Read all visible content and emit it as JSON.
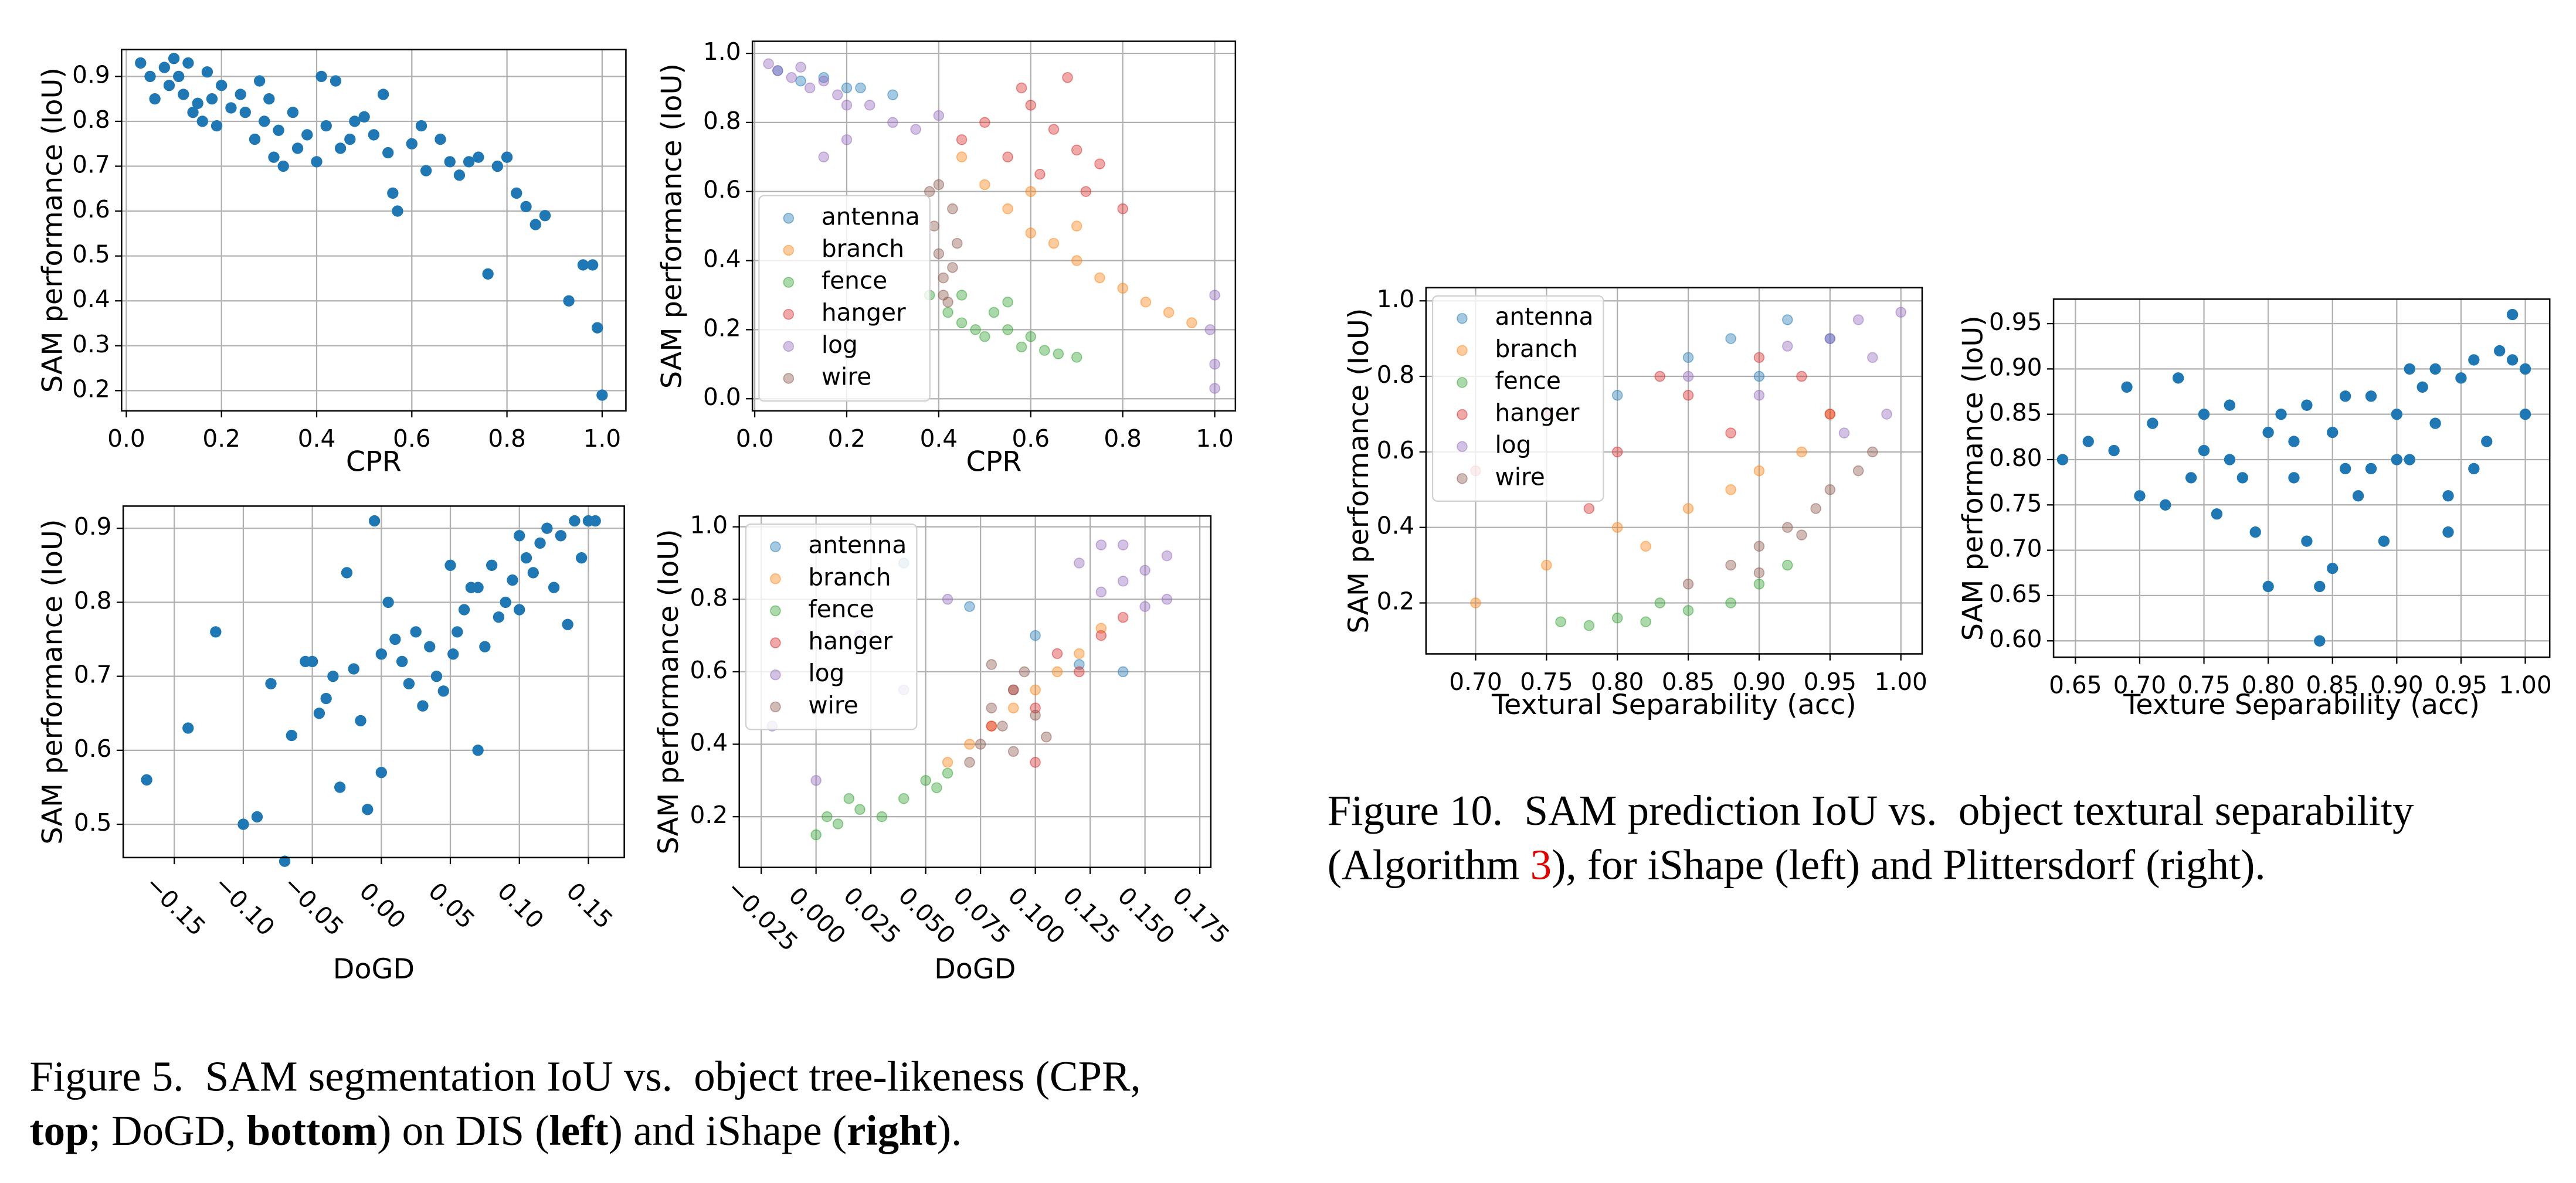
{
  "chart_data": [
    {
      "type": "scatter",
      "x_label": "CPR",
      "y_label": "SAM performance (IoU)",
      "color": "#1f77b4",
      "grid": true,
      "xlim": [
        -0.01,
        1.05
      ],
      "ylim": [
        0.155,
        0.96
      ],
      "xticks": [
        {
          "value": 0,
          "label": "0.0"
        },
        0.2,
        0.4,
        0.6,
        0.8,
        {
          "value": 1,
          "label": "1.0"
        }
      ],
      "yticks": [
        0.2,
        0.3,
        0.4,
        0.5,
        0.6,
        0.7,
        0.8,
        0.9
      ],
      "x": [
        0.03,
        0.05,
        0.06,
        0.08,
        0.09,
        0.1,
        0.11,
        0.12,
        0.13,
        0.14,
        0.15,
        0.16,
        0.17,
        0.18,
        0.19,
        0.2,
        0.22,
        0.24,
        0.25,
        0.27,
        0.28,
        0.29,
        0.3,
        0.31,
        0.32,
        0.33,
        0.35,
        0.36,
        0.38,
        0.4,
        0.41,
        0.42,
        0.44,
        0.45,
        0.47,
        0.48,
        0.5,
        0.52,
        0.54,
        0.55,
        0.56,
        0.57,
        0.6,
        0.62,
        0.63,
        0.66,
        0.68,
        0.7,
        0.72,
        0.74,
        0.76,
        0.78,
        0.8,
        0.82,
        0.84,
        0.86,
        0.88,
        0.93,
        0.96,
        0.98,
        0.99,
        1.0
      ],
      "values": [
        0.93,
        0.9,
        0.85,
        0.92,
        0.88,
        0.94,
        0.9,
        0.86,
        0.93,
        0.82,
        0.84,
        0.8,
        0.91,
        0.85,
        0.79,
        0.88,
        0.83,
        0.86,
        0.82,
        0.76,
        0.89,
        0.8,
        0.85,
        0.72,
        0.78,
        0.7,
        0.82,
        0.74,
        0.77,
        0.71,
        0.9,
        0.79,
        0.89,
        0.74,
        0.76,
        0.8,
        0.81,
        0.77,
        0.86,
        0.73,
        0.64,
        0.6,
        0.75,
        0.79,
        0.69,
        0.76,
        0.71,
        0.68,
        0.71,
        0.72,
        0.46,
        0.7,
        0.72,
        0.64,
        0.61,
        0.57,
        0.59,
        0.4,
        0.48,
        0.48,
        0.34,
        0.19
      ]
    },
    {
      "type": "scatter",
      "x_label": "CPR",
      "y_label": "SAM performance (IoU)",
      "grid": true,
      "legend": "lower left",
      "xlim": [
        -0.005,
        1.045
      ],
      "ylim": [
        -0.035,
        1.035
      ],
      "xticks": [
        {
          "value": 0,
          "label": "0.0"
        },
        0.2,
        0.4,
        0.6,
        0.8,
        {
          "value": 1,
          "label": "1.0"
        }
      ],
      "yticks": [
        {
          "value": 0,
          "label": "0.0"
        },
        0.2,
        0.4,
        0.6,
        0.8,
        {
          "value": 1,
          "label": "1.0"
        }
      ],
      "series": [
        {
          "name": "antenna",
          "color": "#1f77b4",
          "x": [
            0.05,
            0.1,
            0.15,
            0.2,
            0.23,
            0.3
          ],
          "values": [
            0.95,
            0.92,
            0.93,
            0.9,
            0.9,
            0.88
          ]
        },
        {
          "name": "branch",
          "color": "#ff7f0e",
          "x": [
            0.45,
            0.5,
            0.55,
            0.6,
            0.65,
            0.7,
            0.75,
            0.8,
            0.85,
            0.9,
            0.95,
            0.6,
            0.7
          ],
          "values": [
            0.7,
            0.62,
            0.55,
            0.48,
            0.45,
            0.4,
            0.35,
            0.32,
            0.28,
            0.25,
            0.22,
            0.6,
            0.5
          ]
        },
        {
          "name": "fence",
          "color": "#2ca02c",
          "x": [
            0.38,
            0.42,
            0.45,
            0.48,
            0.5,
            0.52,
            0.55,
            0.58,
            0.6,
            0.63,
            0.66,
            0.7,
            0.45,
            0.55
          ],
          "values": [
            0.3,
            0.25,
            0.22,
            0.2,
            0.18,
            0.25,
            0.2,
            0.15,
            0.18,
            0.14,
            0.13,
            0.12,
            0.3,
            0.28
          ]
        },
        {
          "name": "hanger",
          "color": "#d62728",
          "x": [
            0.45,
            0.5,
            0.55,
            0.6,
            0.62,
            0.65,
            0.7,
            0.72,
            0.75,
            0.8,
            0.58,
            0.68
          ],
          "values": [
            0.75,
            0.8,
            0.7,
            0.85,
            0.65,
            0.78,
            0.72,
            0.6,
            0.68,
            0.55,
            0.9,
            0.93
          ]
        },
        {
          "name": "log",
          "color": "#9467bd",
          "x": [
            0.03,
            0.05,
            0.08,
            0.1,
            0.12,
            0.15,
            0.18,
            0.2,
            0.25,
            0.3,
            0.35,
            0.4,
            0.15,
            0.2,
            1.0,
            1.0,
            1.0,
            0.99
          ],
          "values": [
            0.97,
            0.95,
            0.93,
            0.96,
            0.9,
            0.92,
            0.88,
            0.85,
            0.85,
            0.8,
            0.78,
            0.82,
            0.7,
            0.75,
            0.3,
            0.1,
            0.03,
            0.2
          ]
        },
        {
          "name": "wire",
          "color": "#8c564b",
          "x": [
            0.38,
            0.39,
            0.4,
            0.41,
            0.42,
            0.43,
            0.44,
            0.4,
            0.41,
            0.43
          ],
          "values": [
            0.6,
            0.5,
            0.42,
            0.35,
            0.28,
            0.55,
            0.45,
            0.62,
            0.3,
            0.38
          ]
        }
      ]
    },
    {
      "type": "scatter",
      "x_label": "DoGD",
      "y_label": "SAM performance (IoU)",
      "color": "#1f77b4",
      "grid": true,
      "xlim": [
        -0.187,
        0.176
      ],
      "ylim": [
        0.455,
        0.93
      ],
      "xticks": [
        {
          "value": -0.15,
          "label": "−0.15"
        },
        {
          "value": -0.1,
          "label": "−0.10"
        },
        {
          "value": -0.05,
          "label": "−0.05"
        },
        {
          "value": 0,
          "label": "0.00"
        },
        0.05,
        {
          "value": 0.1,
          "label": "0.10"
        },
        0.15
      ],
      "yticks": [
        0.5,
        0.6,
        0.7,
        0.8,
        0.9
      ],
      "x": [
        -0.17,
        -0.14,
        -0.12,
        -0.1,
        -0.09,
        -0.08,
        -0.07,
        -0.065,
        -0.055,
        -0.05,
        -0.045,
        -0.04,
        -0.035,
        -0.03,
        -0.025,
        -0.02,
        -0.015,
        -0.01,
        -0.005,
        0.0,
        0.0,
        0.005,
        0.01,
        0.015,
        0.02,
        0.025,
        0.03,
        0.035,
        0.04,
        0.045,
        0.05,
        0.052,
        0.055,
        0.06,
        0.065,
        0.07,
        0.07,
        0.075,
        0.08,
        0.085,
        0.09,
        0.095,
        0.1,
        0.1,
        0.105,
        0.11,
        0.115,
        0.12,
        0.125,
        0.13,
        0.135,
        0.14,
        0.145,
        0.15,
        0.155
      ],
      "values": [
        0.56,
        0.63,
        0.76,
        0.5,
        0.51,
        0.69,
        0.45,
        0.62,
        0.72,
        0.72,
        0.65,
        0.67,
        0.7,
        0.55,
        0.84,
        0.71,
        0.64,
        0.52,
        0.91,
        0.57,
        0.73,
        0.8,
        0.75,
        0.72,
        0.69,
        0.76,
        0.66,
        0.74,
        0.7,
        0.68,
        0.85,
        0.73,
        0.76,
        0.79,
        0.82,
        0.6,
        0.82,
        0.74,
        0.85,
        0.78,
        0.8,
        0.83,
        0.89,
        0.79,
        0.86,
        0.84,
        0.88,
        0.9,
        0.82,
        0.89,
        0.77,
        0.91,
        0.86,
        0.91,
        0.91
      ]
    },
    {
      "type": "scatter",
      "x_label": "DoGD",
      "y_label": "SAM performance (IoU)",
      "grid": true,
      "legend": "upper left",
      "xlim": [
        -0.035,
        0.18
      ],
      "ylim": [
        0.06,
        1.03
      ],
      "xticks": [
        {
          "value": -0.025,
          "label": "−0.025"
        },
        {
          "value": 0,
          "label": "0.000"
        },
        0.025,
        {
          "value": 0.05,
          "label": "0.050"
        },
        0.075,
        {
          "value": 0.1,
          "label": "0.100"
        },
        0.125,
        {
          "value": 0.15,
          "label": "0.150"
        },
        0.175
      ],
      "yticks": [
        0.2,
        0.4,
        0.6,
        0.8,
        {
          "value": 1,
          "label": "1.0"
        }
      ],
      "series": [
        {
          "name": "antenna",
          "color": "#1f77b4",
          "x": [
            0.04,
            0.07,
            0.1,
            0.12,
            0.14
          ],
          "values": [
            0.9,
            0.78,
            0.7,
            0.62,
            0.6
          ]
        },
        {
          "name": "branch",
          "color": "#ff7f0e",
          "x": [
            0.06,
            0.07,
            0.08,
            0.09,
            0.1,
            0.11,
            0.12,
            0.13
          ],
          "values": [
            0.35,
            0.4,
            0.45,
            0.5,
            0.55,
            0.6,
            0.65,
            0.72
          ]
        },
        {
          "name": "fence",
          "color": "#2ca02c",
          "x": [
            0.0,
            0.005,
            0.01,
            0.02,
            0.03,
            0.04,
            0.05,
            0.055,
            0.06,
            0.015
          ],
          "values": [
            0.15,
            0.2,
            0.18,
            0.22,
            0.2,
            0.25,
            0.3,
            0.28,
            0.32,
            0.25
          ]
        },
        {
          "name": "hanger",
          "color": "#d62728",
          "x": [
            0.08,
            0.09,
            0.1,
            0.11,
            0.12,
            0.13,
            0.14,
            0.1
          ],
          "values": [
            0.45,
            0.55,
            0.5,
            0.65,
            0.6,
            0.7,
            0.75,
            0.35
          ]
        },
        {
          "name": "log",
          "color": "#9467bd",
          "x": [
            -0.02,
            0.0,
            0.02,
            0.04,
            0.06,
            0.12,
            0.13,
            0.14,
            0.15,
            0.16,
            0.15,
            0.14,
            0.16,
            0.13
          ],
          "values": [
            0.45,
            0.3,
            0.7,
            0.55,
            0.8,
            0.9,
            0.95,
            0.85,
            0.88,
            0.92,
            0.78,
            0.95,
            0.8,
            0.82
          ]
        },
        {
          "name": "wire",
          "color": "#8c564b",
          "x": [
            0.07,
            0.075,
            0.08,
            0.085,
            0.09,
            0.095,
            0.1,
            0.105,
            0.08,
            0.09
          ],
          "values": [
            0.35,
            0.4,
            0.5,
            0.45,
            0.55,
            0.6,
            0.48,
            0.42,
            0.62,
            0.38
          ]
        }
      ]
    },
    {
      "type": "scatter",
      "x_label": "Textural Separability (acc)",
      "y_label": "SAM performance (IoU)",
      "grid": true,
      "legend": "upper left",
      "xlim": [
        0.665,
        1.015
      ],
      "ylim": [
        0.065,
        1.035
      ],
      "xticks": [
        {
          "value": 0.7,
          "label": "0.70"
        },
        0.75,
        {
          "value": 0.8,
          "label": "0.80"
        },
        0.85,
        {
          "value": 0.9,
          "label": "0.90"
        },
        0.95,
        {
          "value": 1,
          "label": "1.00"
        }
      ],
      "yticks": [
        0.2,
        0.4,
        0.6,
        0.8,
        {
          "value": 1,
          "label": "1.0"
        }
      ],
      "series": [
        {
          "name": "antenna",
          "color": "#1f77b4",
          "x": [
            0.8,
            0.85,
            0.88,
            0.9,
            0.92,
            0.95
          ],
          "values": [
            0.75,
            0.85,
            0.9,
            0.8,
            0.95,
            0.9
          ]
        },
        {
          "name": "branch",
          "color": "#ff7f0e",
          "x": [
            0.7,
            0.75,
            0.8,
            0.82,
            0.85,
            0.88,
            0.9,
            0.93,
            0.95
          ],
          "values": [
            0.2,
            0.3,
            0.4,
            0.35,
            0.45,
            0.5,
            0.55,
            0.6,
            0.7
          ]
        },
        {
          "name": "fence",
          "color": "#2ca02c",
          "x": [
            0.76,
            0.78,
            0.8,
            0.82,
            0.85,
            0.88,
            0.9,
            0.92,
            0.83
          ],
          "values": [
            0.15,
            0.14,
            0.16,
            0.15,
            0.18,
            0.2,
            0.25,
            0.3,
            0.2
          ]
        },
        {
          "name": "hanger",
          "color": "#d62728",
          "x": [
            0.7,
            0.75,
            0.8,
            0.85,
            0.88,
            0.9,
            0.93,
            0.95,
            0.78,
            0.83
          ],
          "values": [
            0.55,
            0.7,
            0.6,
            0.75,
            0.65,
            0.85,
            0.8,
            0.7,
            0.45,
            0.8
          ]
        },
        {
          "name": "log",
          "color": "#9467bd",
          "x": [
            0.85,
            0.9,
            0.92,
            0.95,
            0.97,
            0.98,
            1.0,
            0.99,
            0.96
          ],
          "values": [
            0.8,
            0.75,
            0.88,
            0.9,
            0.95,
            0.85,
            0.97,
            0.7,
            0.65
          ]
        },
        {
          "name": "wire",
          "color": "#8c564b",
          "x": [
            0.85,
            0.88,
            0.9,
            0.92,
            0.94,
            0.95,
            0.97,
            0.98,
            0.9,
            0.93
          ],
          "values": [
            0.25,
            0.3,
            0.35,
            0.4,
            0.45,
            0.5,
            0.55,
            0.6,
            0.28,
            0.38
          ]
        }
      ]
    },
    {
      "type": "scatter",
      "x_label": "Texture Separability (acc)",
      "y_label": "SAM performance (IoU)",
      "color": "#1f77b4",
      "grid": true,
      "xlim": [
        0.633,
        1.019
      ],
      "ylim": [
        0.582,
        0.977
      ],
      "xticks": [
        0.65,
        {
          "value": 0.7,
          "label": "0.70"
        },
        0.75,
        {
          "value": 0.8,
          "label": "0.80"
        },
        0.85,
        {
          "value": 0.9,
          "label": "0.90"
        },
        0.95,
        {
          "value": 1,
          "label": "1.00"
        }
      ],
      "yticks": [
        {
          "value": 0.6,
          "label": "0.60"
        },
        0.65,
        {
          "value": 0.7,
          "label": "0.70"
        },
        0.75,
        {
          "value": 0.8,
          "label": "0.80"
        },
        0.85,
        {
          "value": 0.9,
          "label": "0.90"
        },
        0.95
      ],
      "x": [
        0.64,
        0.66,
        0.68,
        0.69,
        0.7,
        0.71,
        0.72,
        0.73,
        0.74,
        0.75,
        0.75,
        0.76,
        0.77,
        0.77,
        0.78,
        0.79,
        0.8,
        0.8,
        0.81,
        0.82,
        0.82,
        0.83,
        0.83,
        0.84,
        0.84,
        0.85,
        0.85,
        0.86,
        0.86,
        0.87,
        0.88,
        0.88,
        0.89,
        0.9,
        0.9,
        0.91,
        0.91,
        0.92,
        0.93,
        0.93,
        0.94,
        0.94,
        0.95,
        0.96,
        0.96,
        0.97,
        0.98,
        0.99,
        0.99,
        1.0,
        1.0
      ],
      "values": [
        0.8,
        0.82,
        0.81,
        0.88,
        0.76,
        0.84,
        0.75,
        0.89,
        0.78,
        0.81,
        0.85,
        0.74,
        0.8,
        0.86,
        0.78,
        0.72,
        0.66,
        0.83,
        0.85,
        0.78,
        0.82,
        0.71,
        0.86,
        0.66,
        0.6,
        0.68,
        0.83,
        0.79,
        0.87,
        0.76,
        0.79,
        0.87,
        0.71,
        0.8,
        0.85,
        0.9,
        0.8,
        0.88,
        0.84,
        0.9,
        0.76,
        0.72,
        0.89,
        0.79,
        0.91,
        0.82,
        0.92,
        0.91,
        0.96,
        0.9,
        0.85
      ]
    }
  ],
  "captions": [
    {
      "parts": [
        "Figure 5.  SAM segmentation IoU vs.  object tree-likeness (CPR,",
        "top",
        "; DoGD, ",
        "bottom",
        ") on DIS (",
        "left",
        ") and iShape (",
        "right",
        ")."
      ]
    },
    {
      "parts": [
        "Figure 10.  SAM prediction IoU vs.  object textural separability",
        "(Algorithm ",
        "3",
        "), for iShape (left) and Plittersdorf (right)."
      ]
    }
  ]
}
